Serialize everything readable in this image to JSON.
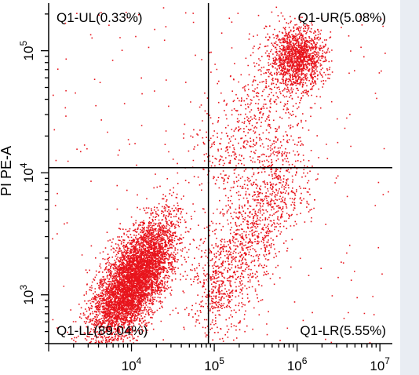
{
  "chart_data": {
    "type": "scatter",
    "title": "",
    "xlabel": "",
    "ylabel": "PI PE-A",
    "x_scale": "log",
    "y_scale": "log",
    "xlim_log10": [
      3.0,
      7.15
    ],
    "ylim_log10": [
      2.6,
      5.39
    ],
    "x_ticks": [
      {
        "base": "10",
        "exp": "4",
        "value": 10000
      },
      {
        "base": "10",
        "exp": "5",
        "value": 100000
      },
      {
        "base": "10",
        "exp": "6",
        "value": 1000000
      },
      {
        "base": "10",
        "exp": "7",
        "value": 10000000
      }
    ],
    "y_ticks": [
      {
        "base": "10",
        "exp": "3",
        "value": 1000
      },
      {
        "base": "10",
        "exp": "4",
        "value": 10000
      },
      {
        "base": "10",
        "exp": "5",
        "value": 100000
      }
    ],
    "gate": {
      "x": 85000,
      "y": 11000
    },
    "quadrants": [
      {
        "id": "UL",
        "label": "Q1-UL(0.33%)",
        "percent": 0.33,
        "position": "top-left"
      },
      {
        "id": "UR",
        "label": "Q1-UR(5.08%)",
        "percent": 5.08,
        "position": "top-right"
      },
      {
        "id": "LL",
        "label": "Q1-LL(89.04%)",
        "percent": 89.04,
        "position": "bottom-left"
      },
      {
        "id": "LR",
        "label": "Q1-LR(5.55%)",
        "percent": 5.55,
        "position": "bottom-right"
      }
    ],
    "point_color": "#e8141c",
    "grid": false
  }
}
